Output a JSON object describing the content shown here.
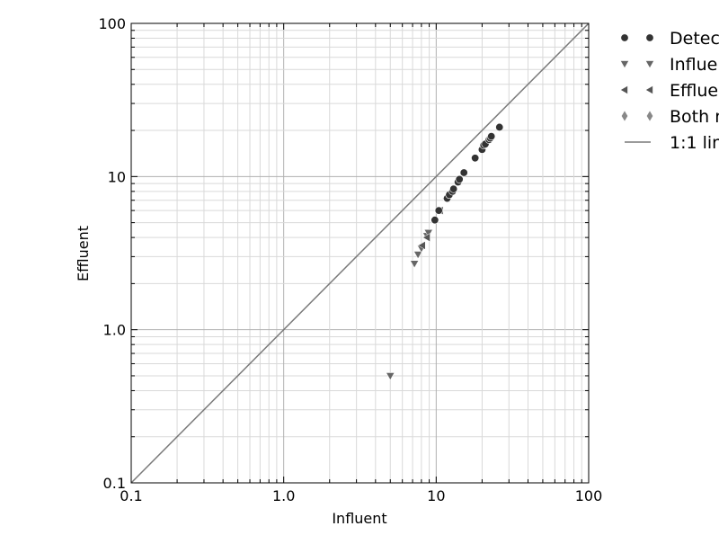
{
  "chart_data": {
    "type": "scatter",
    "xscale": "log",
    "yscale": "log",
    "xlim": [
      0.1,
      100
    ],
    "ylim": [
      0.1,
      100
    ],
    "xlabel": "Influent",
    "ylabel": "Effluent",
    "grid": true,
    "legend_position": "outside-right",
    "x_tick_labels": [
      "0.1",
      "1.0",
      "10",
      "100"
    ],
    "y_tick_labels": [
      "0.1",
      "1.0",
      "10",
      "100"
    ],
    "series": [
      {
        "name": "Detec",
        "marker": "circle",
        "color": "#333333",
        "points": [
          [
            9.8,
            5.2
          ],
          [
            10.4,
            6.0
          ],
          [
            11.8,
            7.2
          ],
          [
            12.2,
            7.6
          ],
          [
            12.8,
            8.0
          ],
          [
            13.0,
            8.3
          ],
          [
            13.9,
            9.2
          ],
          [
            14.2,
            9.6
          ],
          [
            15.2,
            10.6
          ],
          [
            18.0,
            13.2
          ],
          [
            20.0,
            15.0
          ],
          [
            20.5,
            16.0
          ],
          [
            21.0,
            16.3
          ],
          [
            22.2,
            17.4
          ],
          [
            22.6,
            17.8
          ],
          [
            23.0,
            18.3
          ],
          [
            26.0,
            21.0
          ]
        ]
      },
      {
        "name": "Influe",
        "marker": "triangle-down",
        "color": "#666666",
        "points": [
          [
            5.0,
            0.5
          ],
          [
            7.2,
            2.7
          ],
          [
            7.6,
            3.1
          ],
          [
            8.0,
            3.4
          ],
          [
            8.7,
            4.1
          ],
          [
            8.9,
            4.3
          ]
        ]
      },
      {
        "name": "Efflue",
        "marker": "triangle-left",
        "color": "#555555",
        "points": [
          [
            8.1,
            3.55
          ],
          [
            8.7,
            4.0
          ],
          [
            10.6,
            6.0
          ],
          [
            11.7,
            7.2
          ],
          [
            13.9,
            9.3
          ]
        ]
      },
      {
        "name": "Both r",
        "marker": "diamond",
        "color": "#888888",
        "points": []
      },
      {
        "name": "1:1 lin",
        "marker": "line",
        "color": "#7a7a7a",
        "points": [
          [
            0.1,
            0.1
          ],
          [
            100,
            100
          ]
        ]
      }
    ]
  }
}
